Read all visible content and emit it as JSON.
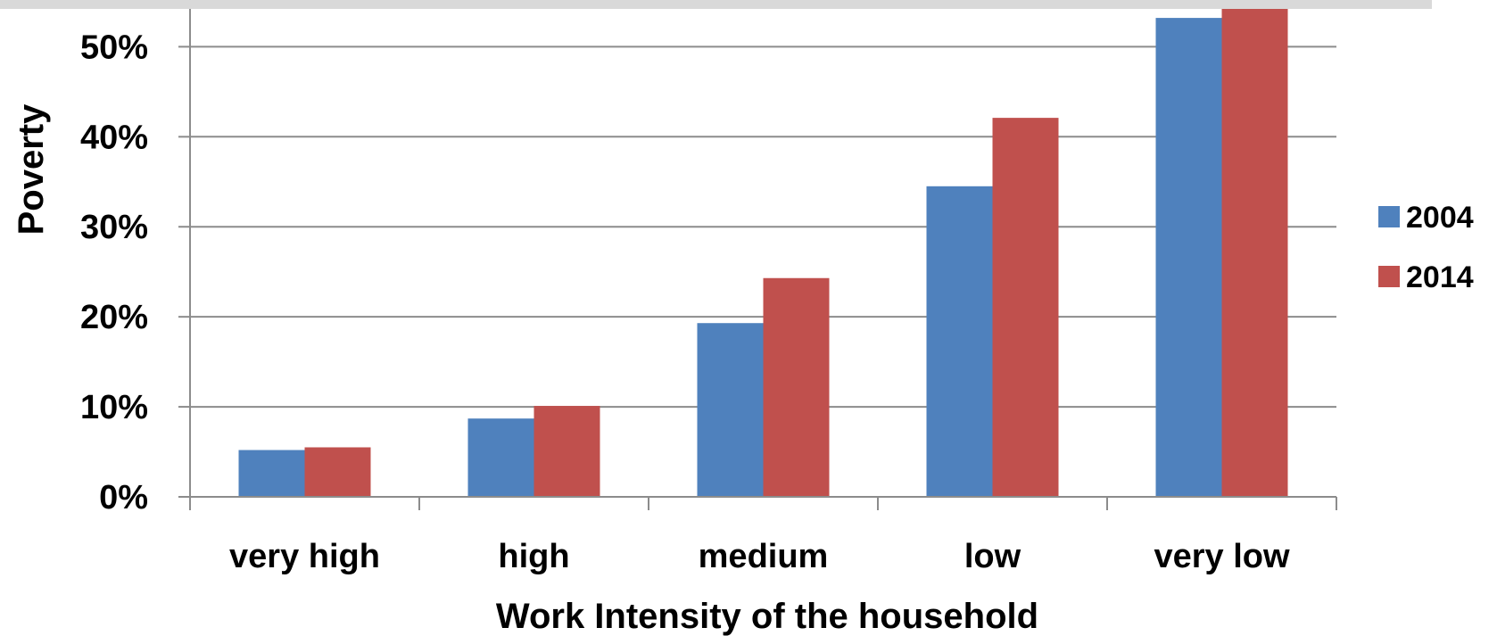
{
  "chart_data": {
    "type": "bar",
    "title": "",
    "xlabel": "Work Intensity of the household",
    "ylabel": "Poverty",
    "categories": [
      "very high",
      "high",
      "medium",
      "low",
      "very low"
    ],
    "series": [
      {
        "name": "2004",
        "color": "#4f81bd",
        "values": [
          5.2,
          8.7,
          19.3,
          34.5,
          53.2
        ]
      },
      {
        "name": "2014",
        "color": "#c0504d",
        "values": [
          5.5,
          10.1,
          24.3,
          42.1,
          54.2
        ]
      }
    ],
    "ylim": [
      0,
      54.2
    ],
    "yticks": [
      0,
      10,
      20,
      30,
      40,
      50
    ],
    "ytick_labels": [
      "0%",
      "10%",
      "20%",
      "30%",
      "40%",
      "50%"
    ],
    "grid": true,
    "legend_position": "right"
  }
}
